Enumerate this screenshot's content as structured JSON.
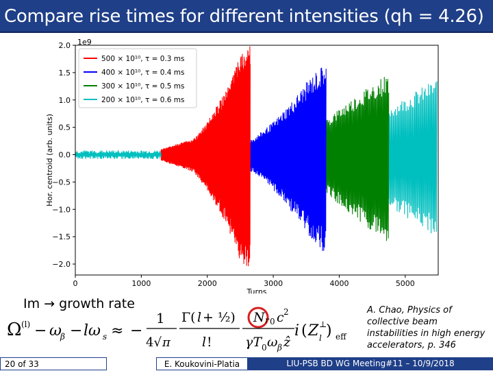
{
  "slide": {
    "title": "Compare rise times for different intensities (qh = 4.26)",
    "im_text": "Im",
    "im_result": "growth rate",
    "reference_lines": [
      "A. Chao, Physics of",
      "collective beam",
      "instabilities in high energy",
      "accelerators, p. 346"
    ],
    "footer": {
      "page": "20 of 33",
      "author": "E. Koukovini-Platia",
      "meeting": "LIU-PSB BD WG Meeting#11 – 10/9/2018"
    },
    "colors": {
      "title_bg": "#1f3f88",
      "accent_circle": "#d42020"
    }
  },
  "chart_data": {
    "type": "line",
    "xlabel": "Turns",
    "ylabel": "Hor. centroid (arb. units)",
    "y_scale_label": "1e9",
    "xlim": [
      0,
      5500
    ],
    "ylim": [
      -2.2,
      2.0
    ],
    "x_ticks": [
      0,
      1000,
      2000,
      3000,
      4000,
      5000
    ],
    "y_ticks": [
      -2.0,
      -1.5,
      -1.0,
      -0.5,
      0.0,
      0.5,
      1.0,
      1.5,
      2.0
    ],
    "grid": false,
    "legend_position": "top-left",
    "series": [
      {
        "name": "500 × 10¹⁰, τ = 0.3 ms",
        "color": "#ff0000",
        "onset_turn": 1300,
        "end_turn": 2650,
        "envelope_x": [
          1300,
          1800,
          2000,
          2300,
          2500,
          2650
        ],
        "envelope_y": [
          0.1,
          0.3,
          0.6,
          1.2,
          1.8,
          2.0
        ]
      },
      {
        "name": "400 × 10¹⁰, τ = 0.4 ms",
        "color": "#0000ff",
        "onset_turn": 1300,
        "end_turn": 3800,
        "envelope_x": [
          1300,
          2000,
          2700,
          3000,
          3300,
          3550,
          3800
        ],
        "envelope_y": [
          0.05,
          0.1,
          0.3,
          0.6,
          1.0,
          1.4,
          1.7
        ]
      },
      {
        "name": "300 × 10¹⁰, τ = 0.5 ms",
        "color": "#008000",
        "onset_turn": 1300,
        "end_turn": 4750,
        "envelope_x": [
          1300,
          2500,
          3300,
          3800,
          4100,
          4500,
          4750
        ],
        "envelope_y": [
          0.03,
          0.1,
          0.35,
          0.65,
          0.95,
          1.3,
          1.5
        ]
      },
      {
        "name": "200 × 10¹⁰, τ = 0.6 ms",
        "color": "#00bfbf",
        "onset_turn": 1300,
        "end_turn": 5480,
        "envelope_x": [
          1300,
          3000,
          4000,
          4500,
          5000,
          5480
        ],
        "envelope_y": [
          0.02,
          0.1,
          0.4,
          0.7,
          1.05,
          1.4
        ]
      }
    ]
  }
}
